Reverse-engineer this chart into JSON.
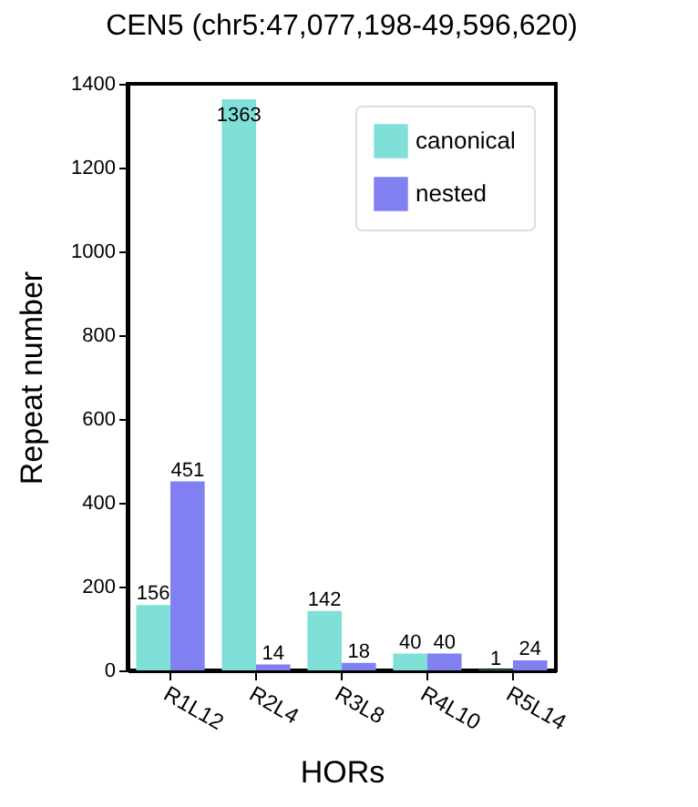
{
  "chart_data": {
    "type": "bar",
    "title": "CEN5 (chr5:47,077,198-49,596,620)",
    "xlabel": "HORs",
    "ylabel": "Repeat number",
    "categories": [
      "R1L12",
      "R2L4",
      "R3L8",
      "R4L10",
      "R5L14"
    ],
    "series": [
      {
        "name": "canonical",
        "color": "#80e0d8",
        "values": [
          156,
          1363,
          142,
          40,
          1
        ]
      },
      {
        "name": "nested",
        "color": "#8080f0",
        "values": [
          451,
          14,
          18,
          40,
          24
        ]
      }
    ],
    "ylim": [
      0,
      1400
    ],
    "yticks": [
      0,
      200,
      400,
      600,
      800,
      1000,
      1200,
      1400
    ],
    "data_labels": true,
    "grid": false,
    "legend": "top right"
  }
}
